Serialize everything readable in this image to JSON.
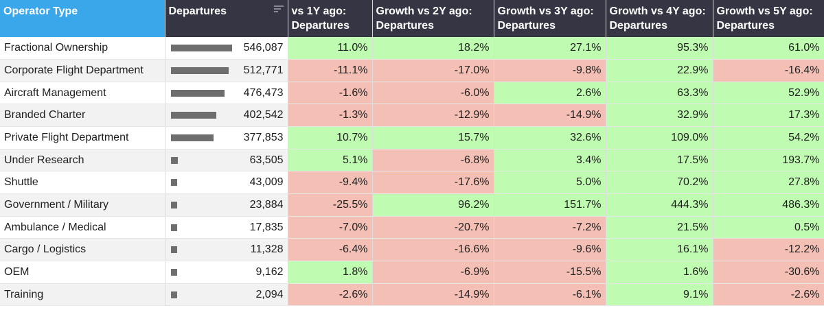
{
  "table": {
    "columns": [
      "Operator Type",
      "Departures",
      "vs 1Y ago: Departures",
      "Growth vs 2Y ago: Departures",
      "Growth vs 3Y ago: Departures",
      "Growth vs 4Y ago: Departures",
      "Growth vs 5Y ago: Departures"
    ],
    "colors": {
      "positive": "#bffbb1",
      "negative": "#f4c0b5",
      "header": "#353543",
      "header_first": "#3aa7ea",
      "bar": "#6e6e6e"
    },
    "max_departures": 546087,
    "rows": [
      {
        "name": "Fractional Ownership",
        "departures": 546087,
        "departures_label": "546,087",
        "growth": [
          "11.0%",
          "18.2%",
          "27.1%",
          "95.3%",
          "61.0%"
        ]
      },
      {
        "name": "Corporate Flight Department",
        "departures": 512771,
        "departures_label": "512,771",
        "growth": [
          "-11.1%",
          "-17.0%",
          "-9.8%",
          "22.9%",
          "-16.4%"
        ]
      },
      {
        "name": "Aircraft Management",
        "departures": 476473,
        "departures_label": "476,473",
        "growth": [
          "-1.6%",
          "-6.0%",
          "2.6%",
          "63.3%",
          "52.9%"
        ]
      },
      {
        "name": "Branded Charter",
        "departures": 402542,
        "departures_label": "402,542",
        "growth": [
          "-1.3%",
          "-12.9%",
          "-14.9%",
          "32.9%",
          "17.3%"
        ]
      },
      {
        "name": "Private Flight Department",
        "departures": 377853,
        "departures_label": "377,853",
        "growth": [
          "10.7%",
          "15.7%",
          "32.6%",
          "109.0%",
          "54.2%"
        ]
      },
      {
        "name": "Under Research",
        "departures": 63505,
        "departures_label": "63,505",
        "growth": [
          "5.1%",
          "-6.8%",
          "3.4%",
          "17.5%",
          "193.7%"
        ]
      },
      {
        "name": "Shuttle",
        "departures": 43009,
        "departures_label": "43,009",
        "growth": [
          "-9.4%",
          "-17.6%",
          "5.0%",
          "70.2%",
          "27.8%"
        ]
      },
      {
        "name": "Government / Military",
        "departures": 23884,
        "departures_label": "23,884",
        "growth": [
          "-25.5%",
          "96.2%",
          "151.7%",
          "444.3%",
          "486.3%"
        ]
      },
      {
        "name": "Ambulance / Medical",
        "departures": 17835,
        "departures_label": "17,835",
        "growth": [
          "-7.0%",
          "-20.7%",
          "-7.2%",
          "21.5%",
          "0.5%"
        ]
      },
      {
        "name": "Cargo / Logistics",
        "departures": 11328,
        "departures_label": "11,328",
        "growth": [
          "-6.4%",
          "-16.6%",
          "-9.6%",
          "16.1%",
          "-12.2%"
        ]
      },
      {
        "name": "OEM",
        "departures": 9162,
        "departures_label": "9,162",
        "growth": [
          "1.8%",
          "-6.9%",
          "-15.5%",
          "1.6%",
          "-30.6%"
        ]
      },
      {
        "name": "Training",
        "departures": 2094,
        "departures_label": "2,094",
        "growth": [
          "-2.6%",
          "-14.9%",
          "-6.1%",
          "9.1%",
          "-2.6%"
        ]
      }
    ]
  }
}
